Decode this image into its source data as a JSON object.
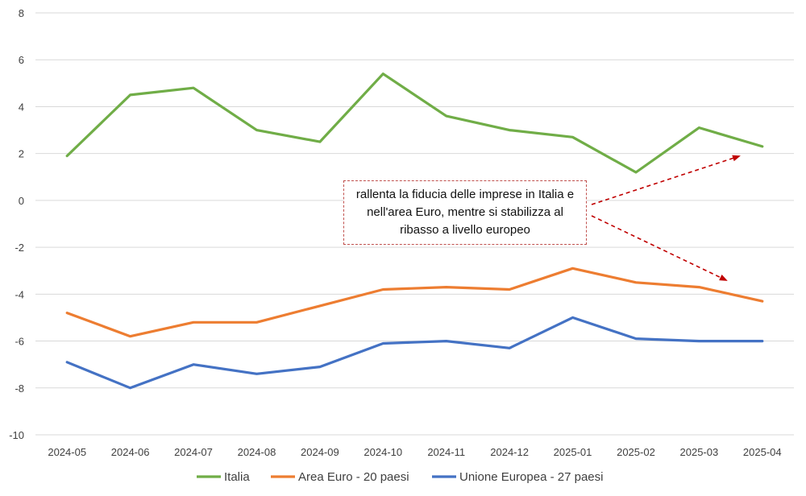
{
  "chart_data": {
    "type": "line",
    "categories": [
      "2024-05",
      "2024-06",
      "2024-07",
      "2024-08",
      "2024-09",
      "2024-10",
      "2024-11",
      "2024-12",
      "2025-01",
      "2025-02",
      "2025-03",
      "2025-04"
    ],
    "series": [
      {
        "name": "Italia",
        "color": "#70ad47",
        "values": [
          1.9,
          4.5,
          4.8,
          3.0,
          2.5,
          5.4,
          3.6,
          3.0,
          2.7,
          1.2,
          3.1,
          2.3
        ]
      },
      {
        "name": "Area Euro - 20 paesi",
        "color": "#ed7d31",
        "values": [
          -4.8,
          -5.8,
          -5.2,
          -5.2,
          -4.5,
          -3.8,
          -3.7,
          -3.8,
          -2.9,
          -3.5,
          -3.7,
          -4.3
        ]
      },
      {
        "name": "Unione Europea - 27 paesi",
        "color": "#4472c4",
        "values": [
          -6.9,
          -8.0,
          -7.0,
          -7.4,
          -7.1,
          -6.1,
          -6.0,
          -6.3,
          -5.0,
          -5.9,
          -6.0,
          -6.0
        ]
      }
    ],
    "yticks": [
      "8",
      "6",
      "4",
      "2",
      "0",
      "-2",
      "-4",
      "-6",
      "-8",
      "-10"
    ],
    "ylim": [
      -10,
      8
    ],
    "grid": true,
    "legend": "bottom",
    "annotation": "rallenta la fiducia delle imprese in Italia e nell'area Euro, mentre si stabilizza al ribasso a livello europeo",
    "annotation_color": "#c00000"
  }
}
